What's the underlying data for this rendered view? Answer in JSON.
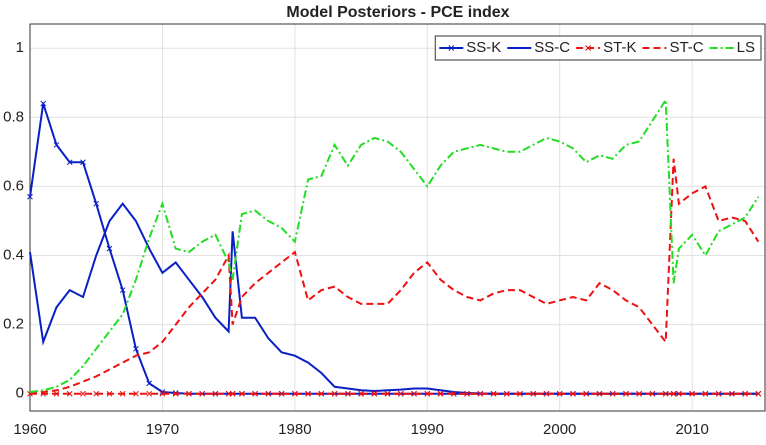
{
  "chart_data": {
    "type": "line",
    "title": "Model Posteriors - PCE index",
    "x": [
      1960,
      1961,
      1962,
      1963,
      1964,
      1965,
      1966,
      1967,
      1968,
      1969,
      1970,
      1971,
      1972,
      1973,
      1974,
      1975,
      1975.3,
      1976,
      1977,
      1978,
      1979,
      1980,
      1981,
      1982,
      1983,
      1984,
      1985,
      1986,
      1987,
      1988,
      1989,
      1990,
      1991,
      1992,
      1993,
      1994,
      1995,
      1996,
      1997,
      1998,
      1999,
      2000,
      2001,
      2002,
      2003,
      2004,
      2005,
      2006,
      2007,
      2008,
      2008.6,
      2009,
      2010,
      2011,
      2012,
      2013,
      2014,
      2015
    ],
    "series": [
      {
        "name": "SS-K",
        "color": "#0a1fc4",
        "linestyle": "solid",
        "marker": "x",
        "values": [
          0.57,
          0.84,
          0.72,
          0.67,
          0.67,
          0.55,
          0.42,
          0.3,
          0.13,
          0.03,
          0.005,
          0.002,
          0,
          0,
          0,
          0,
          0,
          0,
          0,
          0,
          0,
          0,
          0,
          0,
          0,
          0,
          0,
          0,
          0,
          0,
          0,
          0,
          0,
          0,
          0,
          0,
          0,
          0,
          0,
          0,
          0,
          0,
          0,
          0,
          0,
          0,
          0,
          0,
          0,
          0,
          0,
          0,
          0,
          0,
          0,
          0,
          0,
          0
        ]
      },
      {
        "name": "SS-C",
        "color": "#0a1fc4",
        "linestyle": "solid",
        "values": [
          0.41,
          0.15,
          0.25,
          0.3,
          0.28,
          0.4,
          0.5,
          0.55,
          0.5,
          0.42,
          0.35,
          0.38,
          0.33,
          0.28,
          0.22,
          0.18,
          0.47,
          0.22,
          0.22,
          0.16,
          0.12,
          0.11,
          0.09,
          0.06,
          0.02,
          0.015,
          0.01,
          0.008,
          0.01,
          0.012,
          0.015,
          0.015,
          0.01,
          0.005,
          0.002,
          0.001,
          0,
          0,
          0,
          0,
          0,
          0,
          0,
          0,
          0,
          0,
          0,
          0,
          0,
          0,
          0,
          0,
          0,
          0,
          0,
          0,
          0,
          0
        ]
      },
      {
        "name": "ST-K",
        "color": "#ee1111",
        "linestyle": "dashed",
        "marker": "x",
        "values": [
          0,
          0,
          0,
          0,
          0,
          0,
          0,
          0,
          0,
          0,
          0,
          0,
          0,
          0,
          0,
          0,
          0,
          0,
          0,
          0,
          0,
          0,
          0,
          0,
          0,
          0,
          0,
          0,
          0,
          0,
          0,
          0,
          0,
          0,
          0,
          0,
          0,
          0,
          0,
          0,
          0,
          0,
          0,
          0,
          0,
          0,
          0,
          0,
          0,
          0,
          0,
          0,
          0,
          0,
          0,
          0,
          0,
          0
        ]
      },
      {
        "name": "ST-C",
        "color": "#ee1111",
        "linestyle": "dashed",
        "values": [
          0.003,
          0.005,
          0.01,
          0.02,
          0.035,
          0.05,
          0.07,
          0.09,
          0.11,
          0.12,
          0.15,
          0.2,
          0.25,
          0.29,
          0.33,
          0.4,
          0.2,
          0.28,
          0.32,
          0.35,
          0.38,
          0.41,
          0.27,
          0.3,
          0.31,
          0.28,
          0.26,
          0.26,
          0.26,
          0.3,
          0.35,
          0.38,
          0.33,
          0.3,
          0.28,
          0.27,
          0.29,
          0.3,
          0.3,
          0.28,
          0.26,
          0.27,
          0.28,
          0.27,
          0.32,
          0.3,
          0.27,
          0.25,
          0.2,
          0.15,
          0.68,
          0.55,
          0.58,
          0.6,
          0.5,
          0.51,
          0.5,
          0.44
        ]
      },
      {
        "name": "LS",
        "color": "#22dd22",
        "linestyle": "dashdot",
        "values": [
          0.005,
          0.01,
          0.02,
          0.04,
          0.08,
          0.13,
          0.18,
          0.23,
          0.33,
          0.45,
          0.55,
          0.42,
          0.41,
          0.44,
          0.46,
          0.38,
          0.33,
          0.52,
          0.53,
          0.5,
          0.48,
          0.44,
          0.62,
          0.63,
          0.72,
          0.66,
          0.72,
          0.74,
          0.73,
          0.7,
          0.65,
          0.6,
          0.66,
          0.7,
          0.71,
          0.72,
          0.71,
          0.7,
          0.7,
          0.72,
          0.74,
          0.73,
          0.71,
          0.67,
          0.69,
          0.68,
          0.72,
          0.73,
          0.79,
          0.85,
          0.32,
          0.42,
          0.46,
          0.4,
          0.47,
          0.49,
          0.51,
          0.57
        ]
      }
    ],
    "xlim": [
      1960,
      2015.5
    ],
    "xticks": [
      1960,
      1970,
      1980,
      1990,
      2000,
      2010
    ],
    "ylim": [
      -0.05,
      1.07
    ],
    "yticks": [
      0,
      0.2,
      0.4,
      0.6,
      0.8,
      1
    ],
    "grid": true,
    "legend": "top-right"
  }
}
